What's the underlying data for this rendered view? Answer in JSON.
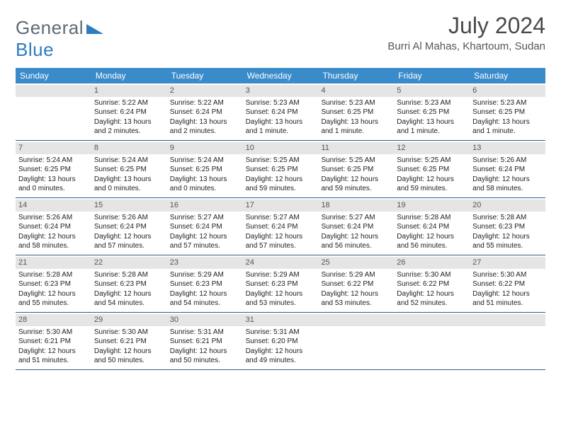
{
  "logo": {
    "text1": "General",
    "text2": "Blue"
  },
  "title": "July 2024",
  "location": "Burri Al Mahas, Khartoum, Sudan",
  "colors": {
    "header_bg": "#3a8bca",
    "header_text": "#ffffff",
    "daynum_bg": "#e5e5e5",
    "week_border": "#315f8a",
    "logo_gray": "#5f6a72",
    "logo_blue": "#2f7bbf"
  },
  "weekdays": [
    "Sunday",
    "Monday",
    "Tuesday",
    "Wednesday",
    "Thursday",
    "Friday",
    "Saturday"
  ],
  "weeks": [
    [
      {
        "day": "",
        "sunrise": "",
        "sunset": "",
        "daylight": ""
      },
      {
        "day": "1",
        "sunrise": "Sunrise: 5:22 AM",
        "sunset": "Sunset: 6:24 PM",
        "daylight": "Daylight: 13 hours and 2 minutes."
      },
      {
        "day": "2",
        "sunrise": "Sunrise: 5:22 AM",
        "sunset": "Sunset: 6:24 PM",
        "daylight": "Daylight: 13 hours and 2 minutes."
      },
      {
        "day": "3",
        "sunrise": "Sunrise: 5:23 AM",
        "sunset": "Sunset: 6:24 PM",
        "daylight": "Daylight: 13 hours and 1 minute."
      },
      {
        "day": "4",
        "sunrise": "Sunrise: 5:23 AM",
        "sunset": "Sunset: 6:25 PM",
        "daylight": "Daylight: 13 hours and 1 minute."
      },
      {
        "day": "5",
        "sunrise": "Sunrise: 5:23 AM",
        "sunset": "Sunset: 6:25 PM",
        "daylight": "Daylight: 13 hours and 1 minute."
      },
      {
        "day": "6",
        "sunrise": "Sunrise: 5:23 AM",
        "sunset": "Sunset: 6:25 PM",
        "daylight": "Daylight: 13 hours and 1 minute."
      }
    ],
    [
      {
        "day": "7",
        "sunrise": "Sunrise: 5:24 AM",
        "sunset": "Sunset: 6:25 PM",
        "daylight": "Daylight: 13 hours and 0 minutes."
      },
      {
        "day": "8",
        "sunrise": "Sunrise: 5:24 AM",
        "sunset": "Sunset: 6:25 PM",
        "daylight": "Daylight: 13 hours and 0 minutes."
      },
      {
        "day": "9",
        "sunrise": "Sunrise: 5:24 AM",
        "sunset": "Sunset: 6:25 PM",
        "daylight": "Daylight: 13 hours and 0 minutes."
      },
      {
        "day": "10",
        "sunrise": "Sunrise: 5:25 AM",
        "sunset": "Sunset: 6:25 PM",
        "daylight": "Daylight: 12 hours and 59 minutes."
      },
      {
        "day": "11",
        "sunrise": "Sunrise: 5:25 AM",
        "sunset": "Sunset: 6:25 PM",
        "daylight": "Daylight: 12 hours and 59 minutes."
      },
      {
        "day": "12",
        "sunrise": "Sunrise: 5:25 AM",
        "sunset": "Sunset: 6:25 PM",
        "daylight": "Daylight: 12 hours and 59 minutes."
      },
      {
        "day": "13",
        "sunrise": "Sunrise: 5:26 AM",
        "sunset": "Sunset: 6:24 PM",
        "daylight": "Daylight: 12 hours and 58 minutes."
      }
    ],
    [
      {
        "day": "14",
        "sunrise": "Sunrise: 5:26 AM",
        "sunset": "Sunset: 6:24 PM",
        "daylight": "Daylight: 12 hours and 58 minutes."
      },
      {
        "day": "15",
        "sunrise": "Sunrise: 5:26 AM",
        "sunset": "Sunset: 6:24 PM",
        "daylight": "Daylight: 12 hours and 57 minutes."
      },
      {
        "day": "16",
        "sunrise": "Sunrise: 5:27 AM",
        "sunset": "Sunset: 6:24 PM",
        "daylight": "Daylight: 12 hours and 57 minutes."
      },
      {
        "day": "17",
        "sunrise": "Sunrise: 5:27 AM",
        "sunset": "Sunset: 6:24 PM",
        "daylight": "Daylight: 12 hours and 57 minutes."
      },
      {
        "day": "18",
        "sunrise": "Sunrise: 5:27 AM",
        "sunset": "Sunset: 6:24 PM",
        "daylight": "Daylight: 12 hours and 56 minutes."
      },
      {
        "day": "19",
        "sunrise": "Sunrise: 5:28 AM",
        "sunset": "Sunset: 6:24 PM",
        "daylight": "Daylight: 12 hours and 56 minutes."
      },
      {
        "day": "20",
        "sunrise": "Sunrise: 5:28 AM",
        "sunset": "Sunset: 6:23 PM",
        "daylight": "Daylight: 12 hours and 55 minutes."
      }
    ],
    [
      {
        "day": "21",
        "sunrise": "Sunrise: 5:28 AM",
        "sunset": "Sunset: 6:23 PM",
        "daylight": "Daylight: 12 hours and 55 minutes."
      },
      {
        "day": "22",
        "sunrise": "Sunrise: 5:28 AM",
        "sunset": "Sunset: 6:23 PM",
        "daylight": "Daylight: 12 hours and 54 minutes."
      },
      {
        "day": "23",
        "sunrise": "Sunrise: 5:29 AM",
        "sunset": "Sunset: 6:23 PM",
        "daylight": "Daylight: 12 hours and 54 minutes."
      },
      {
        "day": "24",
        "sunrise": "Sunrise: 5:29 AM",
        "sunset": "Sunset: 6:23 PM",
        "daylight": "Daylight: 12 hours and 53 minutes."
      },
      {
        "day": "25",
        "sunrise": "Sunrise: 5:29 AM",
        "sunset": "Sunset: 6:22 PM",
        "daylight": "Daylight: 12 hours and 53 minutes."
      },
      {
        "day": "26",
        "sunrise": "Sunrise: 5:30 AM",
        "sunset": "Sunset: 6:22 PM",
        "daylight": "Daylight: 12 hours and 52 minutes."
      },
      {
        "day": "27",
        "sunrise": "Sunrise: 5:30 AM",
        "sunset": "Sunset: 6:22 PM",
        "daylight": "Daylight: 12 hours and 51 minutes."
      }
    ],
    [
      {
        "day": "28",
        "sunrise": "Sunrise: 5:30 AM",
        "sunset": "Sunset: 6:21 PM",
        "daylight": "Daylight: 12 hours and 51 minutes."
      },
      {
        "day": "29",
        "sunrise": "Sunrise: 5:30 AM",
        "sunset": "Sunset: 6:21 PM",
        "daylight": "Daylight: 12 hours and 50 minutes."
      },
      {
        "day": "30",
        "sunrise": "Sunrise: 5:31 AM",
        "sunset": "Sunset: 6:21 PM",
        "daylight": "Daylight: 12 hours and 50 minutes."
      },
      {
        "day": "31",
        "sunrise": "Sunrise: 5:31 AM",
        "sunset": "Sunset: 6:20 PM",
        "daylight": "Daylight: 12 hours and 49 minutes."
      },
      {
        "day": "",
        "sunrise": "",
        "sunset": "",
        "daylight": ""
      },
      {
        "day": "",
        "sunrise": "",
        "sunset": "",
        "daylight": ""
      },
      {
        "day": "",
        "sunrise": "",
        "sunset": "",
        "daylight": ""
      }
    ]
  ]
}
